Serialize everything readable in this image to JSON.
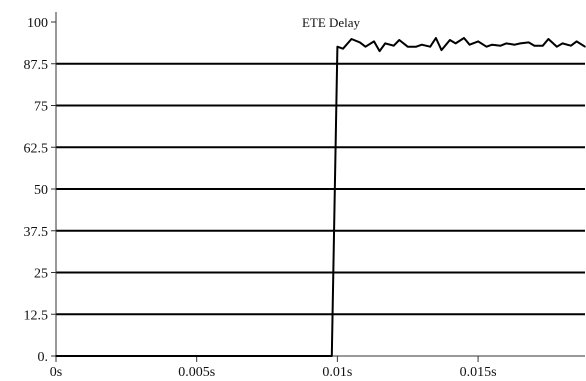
{
  "chart_data": {
    "type": "line",
    "title": "ETE Delay",
    "xlabel": "",
    "ylabel": "",
    "xlim": [
      0,
      0.0188
    ],
    "ylim": [
      0,
      100
    ],
    "grid": true,
    "y_ticks": [
      0,
      12.5,
      25,
      37.5,
      50,
      62.5,
      75,
      87.5,
      100
    ],
    "y_tick_labels": [
      "0.",
      "12.5",
      "25",
      "37.5",
      "50",
      "62.5",
      "75",
      "87.5",
      "100"
    ],
    "x_ticks": [
      0,
      0.005,
      0.01,
      0.015
    ],
    "x_tick_labels": [
      "0s",
      "0.005s",
      "0.01s",
      "0.015s"
    ],
    "series": [
      {
        "x": [
          0,
          0.0098,
          0.01,
          0.0102,
          0.0105,
          0.0108,
          0.011,
          0.0113,
          0.0115,
          0.0117,
          0.012,
          0.0122,
          0.0125,
          0.0128,
          0.013,
          0.0133,
          0.0135,
          0.0137,
          0.014,
          0.0142,
          0.0145,
          0.0147,
          0.015,
          0.0153,
          0.0155,
          0.0158,
          0.016,
          0.0163,
          0.0165,
          0.0168,
          0.017,
          0.0173,
          0.0175,
          0.0178,
          0.018,
          0.0183,
          0.0185,
          0.0188
        ],
        "y": [
          0,
          0,
          92.6,
          92.0,
          94.9,
          93.9,
          92.6,
          94.2,
          91.3,
          93.6,
          92.9,
          94.6,
          92.6,
          92.6,
          93.2,
          92.6,
          95.2,
          91.6,
          94.6,
          93.6,
          95.2,
          93.2,
          94.2,
          92.6,
          93.2,
          92.9,
          93.6,
          93.2,
          93.6,
          93.9,
          92.9,
          92.9,
          94.9,
          92.6,
          93.6,
          92.9,
          94.2,
          92.6
        ]
      }
    ]
  }
}
